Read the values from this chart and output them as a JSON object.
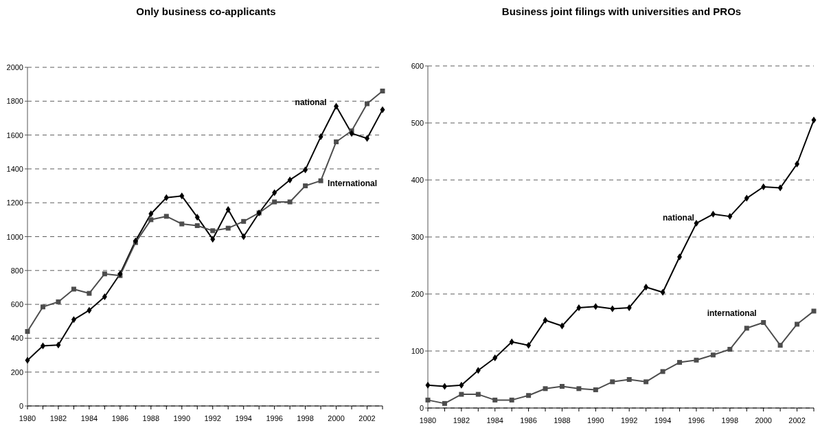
{
  "chart_data": [
    {
      "type": "line",
      "title": "Only business co-applicants",
      "x": [
        1980,
        1981,
        1982,
        1983,
        1984,
        1985,
        1986,
        1987,
        1988,
        1989,
        1990,
        1991,
        1992,
        1993,
        1994,
        1995,
        1996,
        1997,
        1998,
        1999,
        2000,
        2001,
        2002,
        2003
      ],
      "series": [
        {
          "name": "national",
          "color": "#000000",
          "marker": "diamond",
          "values": [
            270,
            355,
            360,
            510,
            565,
            645,
            780,
            975,
            1135,
            1230,
            1240,
            1115,
            985,
            1160,
            1000,
            1140,
            1260,
            1335,
            1395,
            1590,
            1770,
            1610,
            1580,
            1750
          ]
        },
        {
          "name": "International",
          "color": "#4d4d4d",
          "marker": "square",
          "values": [
            440,
            585,
            615,
            690,
            665,
            780,
            770,
            965,
            1100,
            1120,
            1075,
            1065,
            1035,
            1050,
            1090,
            1140,
            1205,
            1205,
            1300,
            1330,
            1560,
            1625,
            1785,
            1860
          ]
        }
      ],
      "xlim": [
        1980,
        2003
      ],
      "xticks": [
        1980,
        {
          "value": 1981,
          "label": null
        },
        1982,
        {
          "value": 1983,
          "label": null
        },
        1984,
        {
          "value": 1985,
          "label": null
        },
        1986,
        {
          "value": 1987,
          "label": null
        },
        1988,
        {
          "value": 1989,
          "label": null
        },
        1990,
        {
          "value": 1991,
          "label": null
        },
        1992,
        {
          "value": 1993,
          "label": null
        },
        1994,
        {
          "value": 1995,
          "label": null
        },
        1996,
        {
          "value": 1997,
          "label": null
        },
        1998,
        {
          "value": 1999,
          "label": null
        },
        2000,
        {
          "value": 2001,
          "label": null
        },
        2002,
        {
          "value": 2003,
          "label": null
        }
      ],
      "ylim": [
        0,
        2000
      ],
      "yticks": [
        0,
        200,
        400,
        600,
        800,
        1000,
        1200,
        1400,
        1600,
        1800,
        2000
      ],
      "grid": "y",
      "line_style": "solid"
    },
    {
      "type": "line",
      "title": "Business joint filings with universities and PROs",
      "x": [
        1980,
        1981,
        1982,
        1983,
        1984,
        1985,
        1986,
        1987,
        1988,
        1989,
        1990,
        1991,
        1992,
        1993,
        1994,
        1995,
        1996,
        1997,
        1998,
        1999,
        2000,
        2001,
        2002,
        2003
      ],
      "series": [
        {
          "name": "national",
          "color": "#000000",
          "marker": "diamond",
          "values": [
            40,
            38,
            40,
            66,
            88,
            116,
            110,
            154,
            144,
            176,
            178,
            174,
            176,
            212,
            203,
            265,
            324,
            340,
            336,
            368,
            388,
            386,
            428,
            505
          ]
        },
        {
          "name": "international",
          "color": "#4d4d4d",
          "marker": "square",
          "values": [
            14,
            8,
            24,
            24,
            14,
            14,
            22,
            34,
            38,
            34,
            32,
            46,
            50,
            46,
            64,
            80,
            84,
            93,
            103,
            140,
            150,
            110,
            147,
            170
          ]
        }
      ],
      "xlim": [
        1980,
        2003
      ],
      "xticks": [
        1980,
        {
          "value": 1981,
          "label": null
        },
        1982,
        {
          "value": 1983,
          "label": null
        },
        1984,
        {
          "value": 1985,
          "label": null
        },
        1986,
        {
          "value": 1987,
          "label": null
        },
        1988,
        {
          "value": 1989,
          "label": null
        },
        1990,
        {
          "value": 1991,
          "label": null
        },
        1992,
        {
          "value": 1993,
          "label": null
        },
        1994,
        {
          "value": 1995,
          "label": null
        },
        1996,
        {
          "value": 1997,
          "label": null
        },
        1998,
        {
          "value": 1999,
          "label": null
        },
        2000,
        {
          "value": 2001,
          "label": null
        },
        2002,
        {
          "value": 2003,
          "label": null
        }
      ],
      "ylim": [
        0,
        600
      ],
      "yticks": [
        0,
        100,
        200,
        300,
        400,
        500,
        600
      ],
      "grid": "y",
      "line_style": "solid"
    }
  ]
}
